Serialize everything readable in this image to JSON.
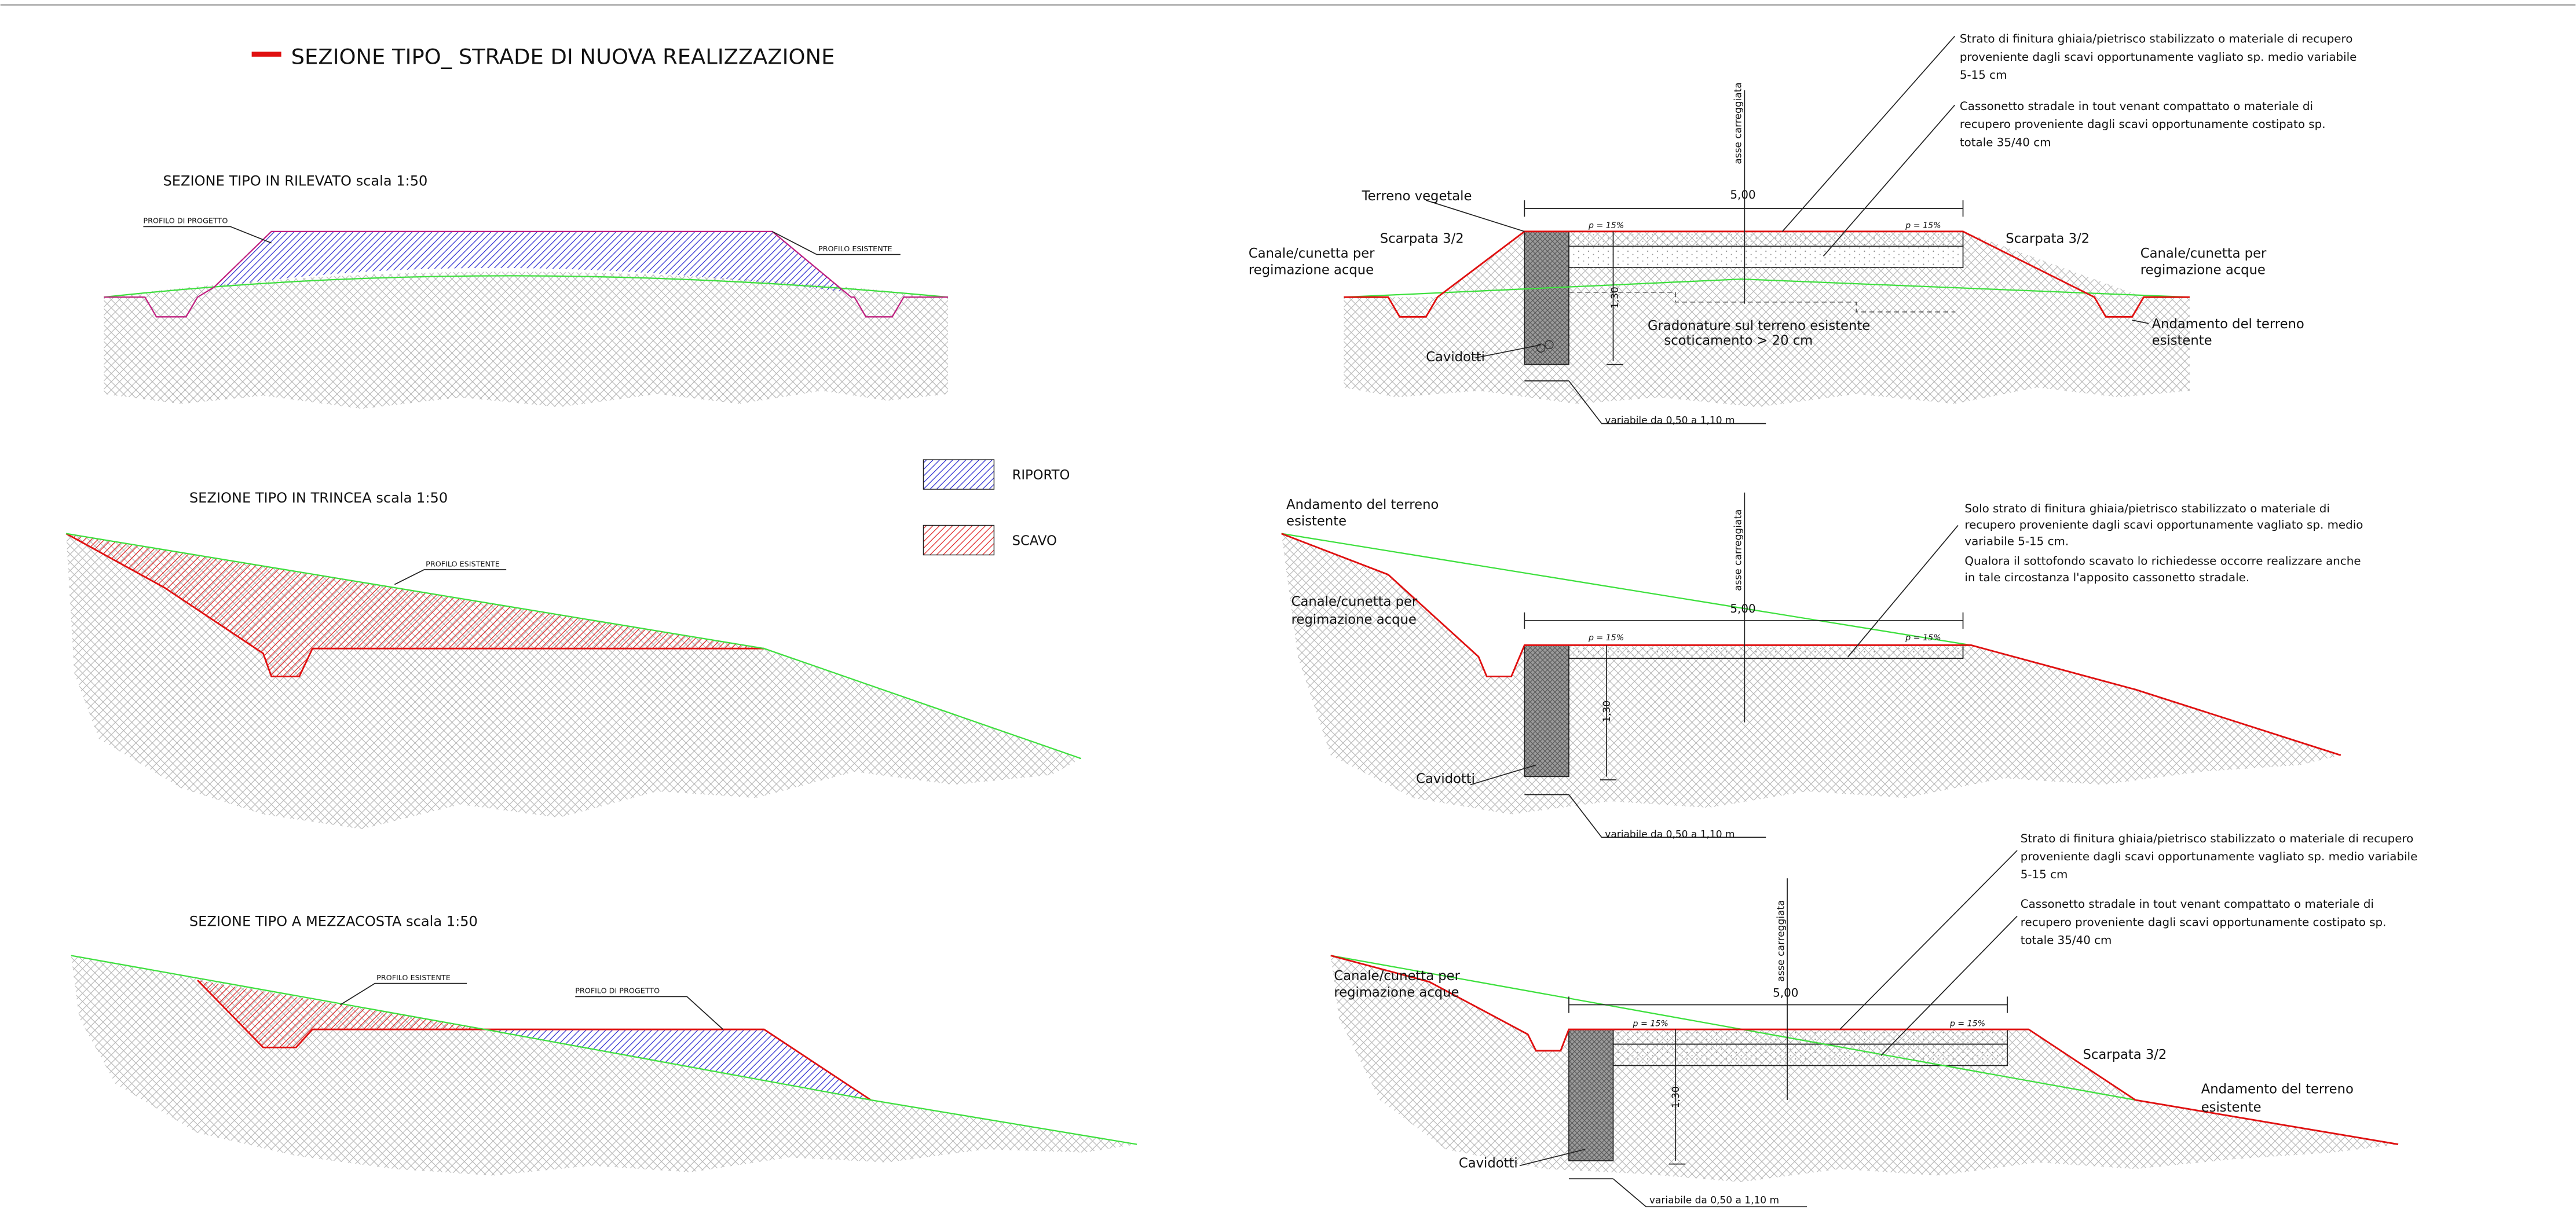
{
  "title": "SEZIONE TIPO_ STRADE DI NUOVA REALIZZAZIONE",
  "legend": [
    "RIPORTO",
    "SCAVO"
  ],
  "sections_left": [
    {
      "title": "SEZIONE TIPO IN RILEVATO scala 1:50",
      "labels": [
        "PROFILO DI PROGETTO",
        "PROFILO ESISTENTE"
      ]
    },
    {
      "title": "SEZIONE TIPO IN TRINCEA scala 1:50",
      "labels": [
        "PROFILO ESISTENTE"
      ]
    },
    {
      "title": "SEZIONE TIPO A MEZZACOSTA scala 1:50",
      "labels": [
        "PROFILO ESISTENTE",
        "PROFILO DI PROGETTO"
      ]
    }
  ],
  "sections_right": [
    {
      "texts": [
        "asse carreggiata",
        "5,00",
        "p = 15%",
        "p = 15%",
        "Terreno vegetale",
        "Scarpata 3/2",
        "Scarpata 3/2",
        "Canale/cunetta per",
        "regimazione acque",
        "Canale/cunetta per",
        "regimazione acque",
        "1,30",
        "Cavidotti",
        "Gradonature sul terreno esistente",
        "scoticamento > 20 cm",
        "variabile da 0,50 a 1,10 m",
        "Andamento del terreno",
        "esistente",
        "Strato di finitura ghiaia/pietrisco stabilizzato o materiale di recupero",
        "proveniente dagli scavi opportunamente vagliato sp. medio variabile",
        "5-15 cm",
        "Cassonetto stradale in tout venant compattato o materiale di",
        "recupero proveniente dagli scavi opportunamente costipato sp.",
        "totale 35/40 cm"
      ]
    },
    {
      "texts": [
        "asse carreggiata",
        "5,00",
        "p = 15%",
        "p = 15%",
        "Andamento del terreno",
        "esistente",
        "Canale/cunetta per",
        "regimazione acque",
        "1,30",
        "Cavidotti",
        "variabile da 0,50 a 1,10 m",
        "Solo strato di finitura ghiaia/pietrisco stabilizzato o materiale di",
        "recupero proveniente dagli scavi opportunamente vagliato sp. medio",
        "variabile 5-15 cm.",
        "Qualora il sottofondo scavato lo richiedesse occorre realizzare anche",
        "in tale circostanza l'apposito cassonetto stradale."
      ]
    },
    {
      "texts": [
        "asse carreggiata",
        "5,00",
        "p = 15%",
        "p = 15%",
        "Canale/cunetta per",
        "regimazione acque",
        "Scarpata 3/2",
        "Andamento del terreno",
        "esistente",
        "1,30",
        "Cavidotti",
        "variabile da 0,50 a 1,10 m",
        "Strato di finitura ghiaia/pietrisco stabilizzato o materiale di recupero",
        "proveniente dagli scavi opportunamente vagliato sp. medio variabile",
        "5-15 cm",
        "Cassonetto stradale in tout venant compattato o materiale di",
        "recupero proveniente dagli scavi opportunamente costipato sp.",
        "totale 35/40 cm"
      ]
    }
  ]
}
